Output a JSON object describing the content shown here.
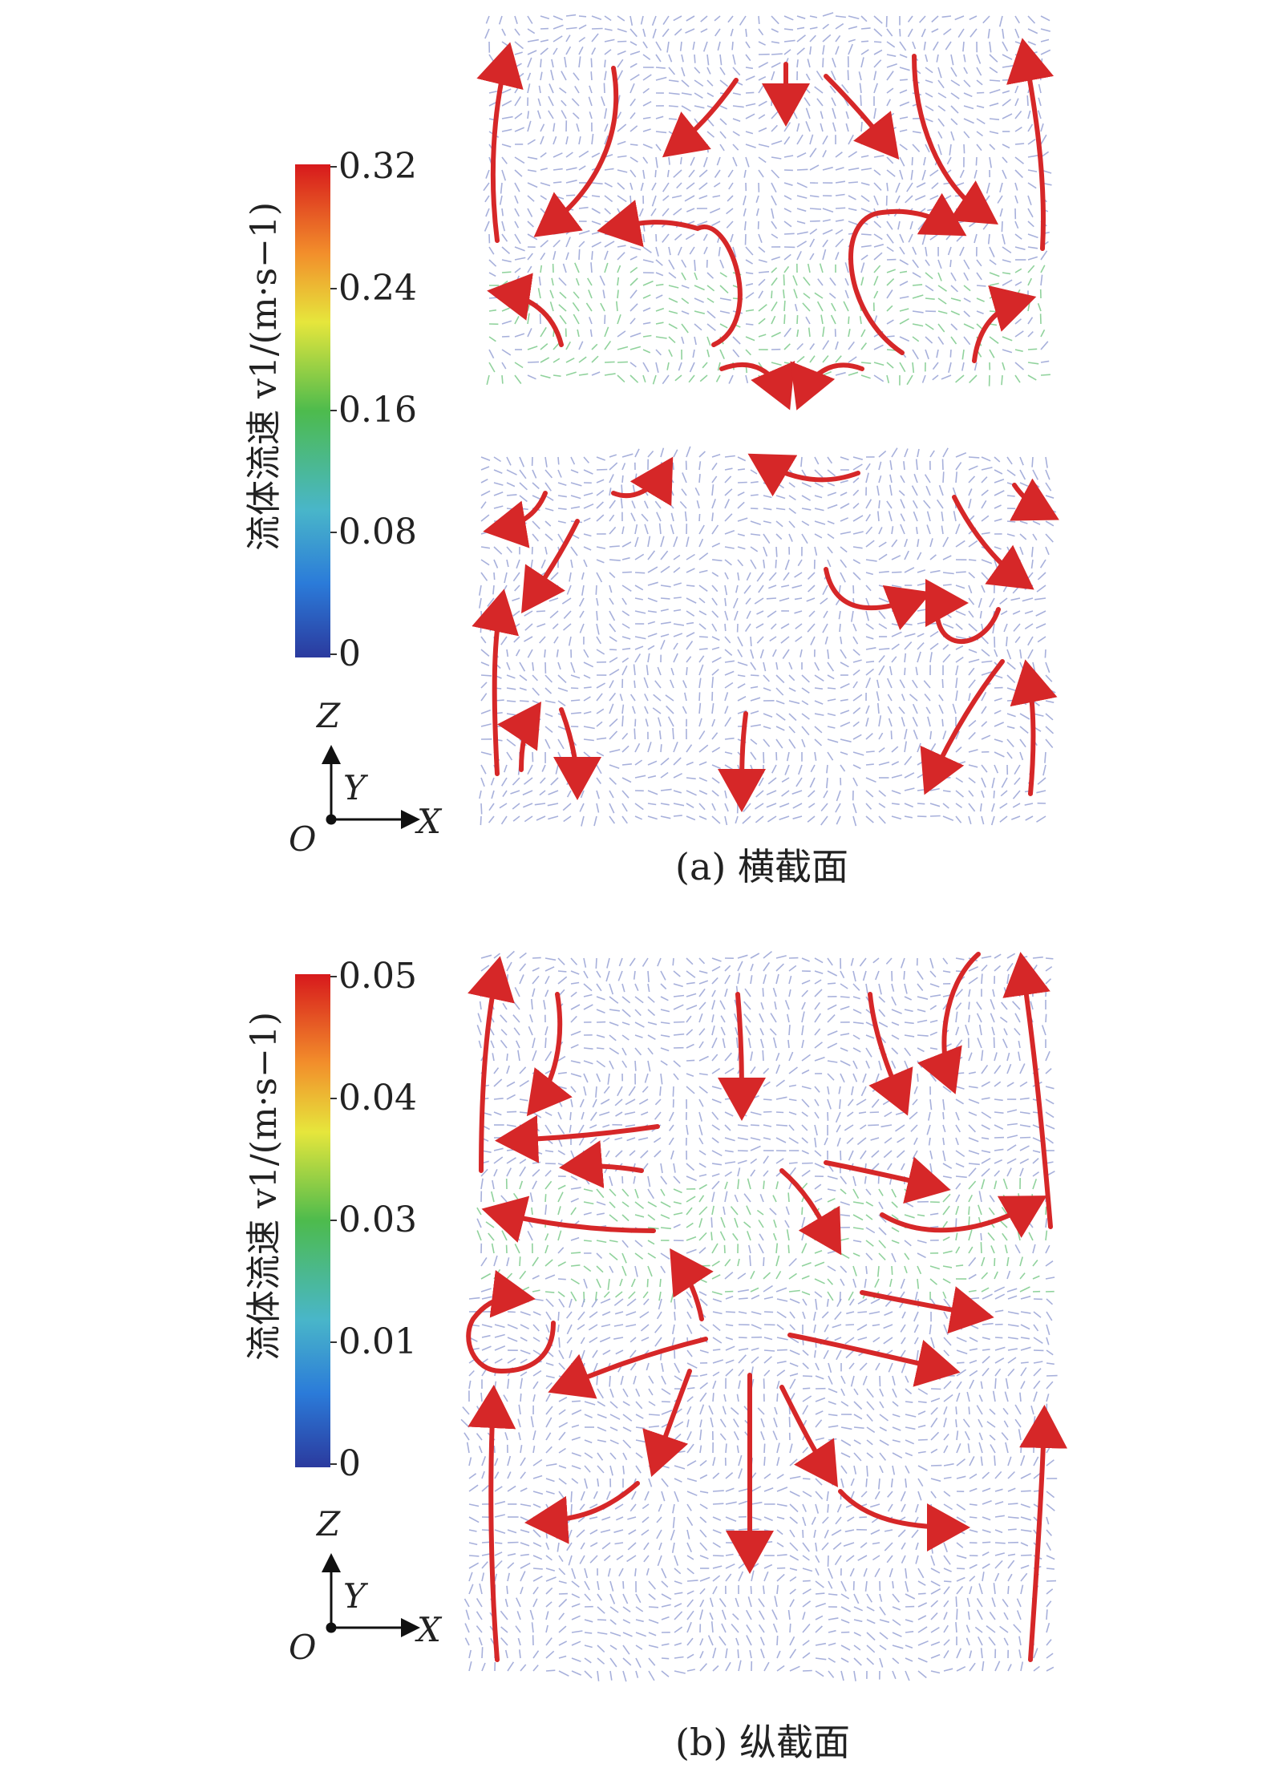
{
  "panels": [
    {
      "caption": "(a) 横截面",
      "colorbar": {
        "title": "流体流速 v1/(m·s−1)",
        "ticks": [
          "0.32",
          "0.24",
          "0.16",
          "0.08",
          "0"
        ],
        "colors": [
          "#d7191c",
          "#f28e2b",
          "#e6e63c",
          "#4dbb4d",
          "#49b6c9",
          "#2b7bd9",
          "#2b3a9e"
        ]
      },
      "axes": {
        "z": "Z",
        "y": "Y",
        "x": "X",
        "o": "O"
      }
    },
    {
      "caption": "(b) 纵截面",
      "colorbar": {
        "title": "流体流速 v1/(m·s−1)",
        "ticks": [
          "0.05",
          "0.04",
          "0.03",
          "0.01",
          "0"
        ],
        "colors": [
          "#d7191c",
          "#f28e2b",
          "#e6e63c",
          "#4dbb4d",
          "#49b6c9",
          "#2b7bd9",
          "#2b3a9e"
        ]
      },
      "axes": {
        "z": "Z",
        "y": "Y",
        "x": "X",
        "o": "O"
      }
    }
  ],
  "colors": {
    "arrow": "#d62728",
    "vector": "#8a96d0",
    "vector_fast": "#6cc47c"
  }
}
